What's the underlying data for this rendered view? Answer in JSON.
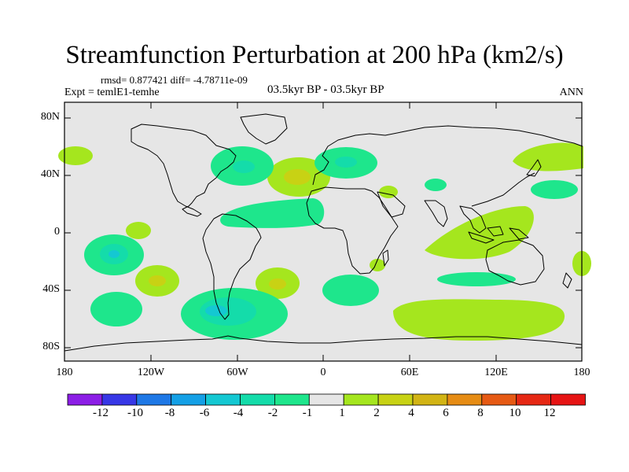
{
  "title": "Streamfunction Perturbation at 200 hPa (km2/s)",
  "stats": "rmsd= 0.877421 diff= -4.78711e-09",
  "experiment": "Expt = temlE1-temhe",
  "period": "03.5kyr BP - 03.5kyr BP",
  "season": "ANN",
  "axes": {
    "lat_labels": [
      "80N",
      "40N",
      "0",
      "40S",
      "80S"
    ],
    "lon_labels": [
      "180",
      "120W",
      "60W",
      "0",
      "60E",
      "120E",
      "180"
    ]
  },
  "colorbar": {
    "labels": [
      "-12",
      "-10",
      "-8",
      "-6",
      "-4",
      "-2",
      "-1",
      "1",
      "2",
      "4",
      "6",
      "8",
      "10",
      "12"
    ],
    "colors": [
      "#8c1ee6",
      "#3737e6",
      "#1e78e6",
      "#14a0e6",
      "#14c8d2",
      "#14dcaa",
      "#1ee68c",
      "#e6e6e6",
      "#a5e61e",
      "#c8d214",
      "#d2b414",
      "#e68c14",
      "#e65a14",
      "#e62814",
      "#e61414"
    ]
  }
}
